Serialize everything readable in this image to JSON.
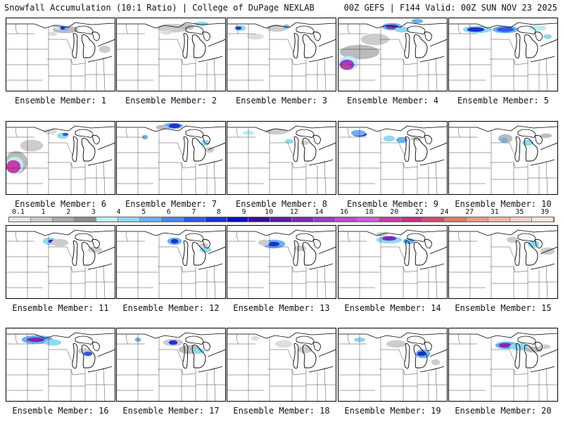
{
  "header": {
    "title": "Snowfall Accumulation (10:1 Ratio) | College of DuPage NEXLAB",
    "run_info": "00Z GEFS | F144 Valid: 00Z SUN NOV 23 2025"
  },
  "members": [
    {
      "label": "Ensemble Member: 1"
    },
    {
      "label": "Ensemble Member: 2"
    },
    {
      "label": "Ensemble Member: 3"
    },
    {
      "label": "Ensemble Member: 4"
    },
    {
      "label": "Ensemble Member: 5"
    },
    {
      "label": "Ensemble Member: 6"
    },
    {
      "label": "Ensemble Member: 7"
    },
    {
      "label": "Ensemble Member: 8"
    },
    {
      "label": "Ensemble Member: 9"
    },
    {
      "label": "Ensemble Member: 10"
    },
    {
      "label": "Ensemble Member: 11"
    },
    {
      "label": "Ensemble Member: 12"
    },
    {
      "label": "Ensemble Member: 13"
    },
    {
      "label": "Ensemble Member: 14"
    },
    {
      "label": "Ensemble Member: 15"
    },
    {
      "label": "Ensemble Member: 16"
    },
    {
      "label": "Ensemble Member: 17"
    },
    {
      "label": "Ensemble Member: 18"
    },
    {
      "label": "Ensemble Member: 19"
    },
    {
      "label": "Ensemble Member: 20"
    }
  ],
  "legend": {
    "labels": [
      "0.1",
      "1",
      "2",
      "3",
      "4",
      "5",
      "6",
      "7",
      "8",
      "9",
      "10",
      "12",
      "14",
      "16",
      "18",
      "20",
      "22",
      "24",
      "27",
      "31",
      "35",
      "39"
    ],
    "colors": [
      "#e6e6e6",
      "#c8c8c8",
      "#a8a8a8",
      "#8c8c8c",
      "#bdeef5",
      "#8fd8ee",
      "#6ab0f0",
      "#4a86ee",
      "#3258e6",
      "#1e30d8",
      "#0a10c8",
      "#3a0aa0",
      "#5a1aa8",
      "#7a2ab8",
      "#9a3ac8",
      "#b84ad0",
      "#d05ad8",
      "#c83aa8",
      "#c8307e",
      "#d04870",
      "#e07a6a",
      "#e89a86",
      "#f0b4a4",
      "#f8d0c2",
      "#fce4d8"
    ]
  }
}
